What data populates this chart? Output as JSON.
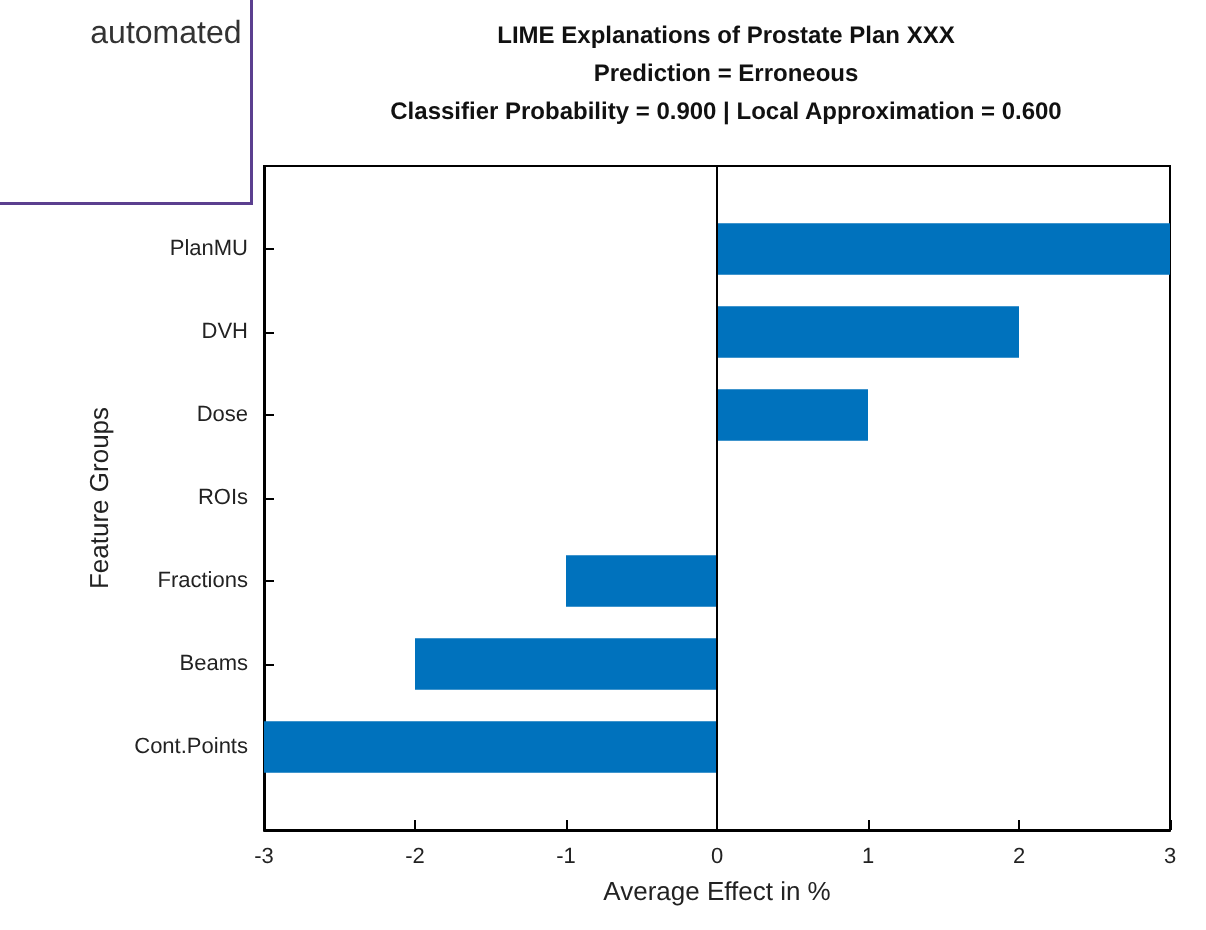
{
  "chart_data": {
    "type": "bar",
    "orientation": "horizontal",
    "title": "LIME Explanations of Prostate Plan XXX\nPrediction = Erroneous\nClassifier Probability = 0.900 | Local Approximation = 0.600",
    "xlabel": "Average Effect in %",
    "ylabel": "Feature Groups",
    "categories": [
      "PlanMU",
      "DVH",
      "Dose",
      "ROIs",
      "Fractions",
      "Beams",
      "Cont.Points"
    ],
    "values": [
      3,
      2,
      1,
      0,
      -1,
      -2,
      -3
    ],
    "color": "#0072bd",
    "xlim": [
      -3,
      3
    ],
    "xticks": [
      -3,
      -2,
      -1,
      0,
      1,
      2,
      3
    ],
    "grid": false,
    "ref_lines": [
      {
        "axis": "x",
        "value": 0,
        "color": "#000000"
      }
    ],
    "annotations": [
      "automated"
    ]
  }
}
